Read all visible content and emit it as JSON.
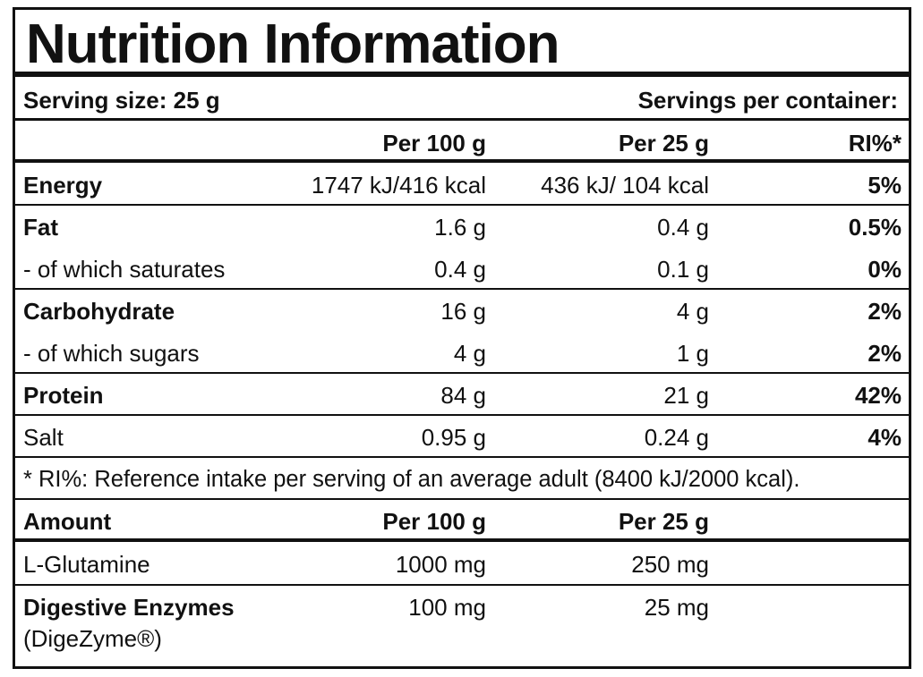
{
  "title": "Nutrition Information",
  "serving": {
    "size": "Serving size: 25 g",
    "per_container": "Servings per container:"
  },
  "nutrition": {
    "header": {
      "per_100g": "Per 100 g",
      "per_serving": "Per 25 g",
      "ri": "RI%*"
    },
    "rows": [
      {
        "label": "Energy",
        "per_100g": "1747 kJ/416 kcal",
        "per_serving": "436 kJ/ 104 kcal",
        "ri": "5%",
        "bold": true,
        "sub": false
      },
      {
        "label": "Fat",
        "per_100g": "1.6 g",
        "per_serving": "0.4 g",
        "ri": "0.5%",
        "bold": true,
        "sub": false
      },
      {
        "label": "- of which saturates",
        "per_100g": "0.4 g",
        "per_serving": "0.1 g",
        "ri": "0%",
        "bold": false,
        "sub": true
      },
      {
        "label": "Carbohydrate",
        "per_100g": "16 g",
        "per_serving": "4 g",
        "ri": "2%",
        "bold": true,
        "sub": false
      },
      {
        "label": "- of which sugars",
        "per_100g": "4 g",
        "per_serving": "1 g",
        "ri": "2%",
        "bold": false,
        "sub": true
      },
      {
        "label": "Protein",
        "per_100g": "84 g",
        "per_serving": "21 g",
        "ri": "42%",
        "bold": true,
        "sub": false
      },
      {
        "label": "Salt",
        "per_100g": "0.95 g",
        "per_serving": "0.24 g",
        "ri": "4%",
        "bold": false,
        "sub": false
      }
    ],
    "footnote": "* RI%: Reference intake per serving of an average adult (8400 kJ/2000 kcal)."
  },
  "amounts": {
    "header": {
      "label": "Amount",
      "per_100g": "Per 100 g",
      "per_serving": "Per 25 g"
    },
    "rows": [
      {
        "label": "L-Glutamine",
        "per_100g": "1000 mg",
        "per_serving": "250 mg",
        "bold": false
      },
      {
        "label": "Digestive Enzymes",
        "note": "(DigeZyme®)",
        "per_100g": "100 mg",
        "per_serving": "25 mg",
        "bold": true
      }
    ]
  }
}
